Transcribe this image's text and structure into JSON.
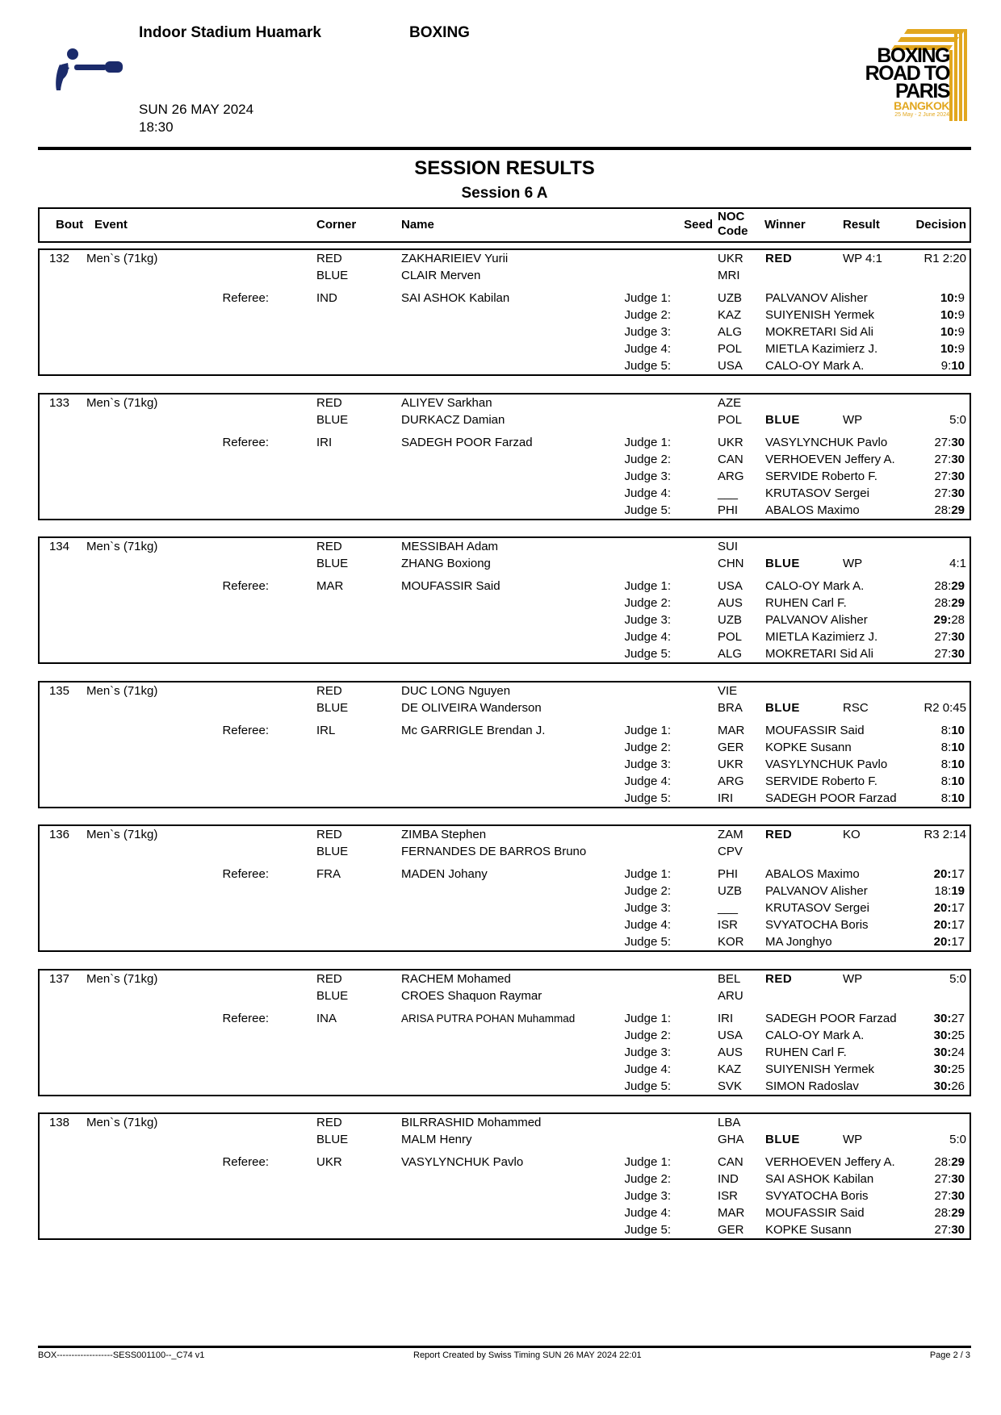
{
  "header": {
    "venue": "Indoor Stadium Huamark",
    "sport": "BOXING",
    "date": "SUN 26 MAY 2024",
    "time": "18:30",
    "logo": {
      "line1": "BOXING",
      "line2": "ROAD TO",
      "line3": "PARIS",
      "city": "BANGKOK",
      "dates": "25 May - 2 June 2024"
    },
    "title": "SESSION RESULTS",
    "subtitle": "Session 6 A"
  },
  "colors": {
    "pictogram": "#1b2b6b",
    "logo_gold": "#e2a71f"
  },
  "columns": {
    "bout": "Bout",
    "event": "Event",
    "corner": "Corner",
    "name": "Name",
    "seed": "Seed",
    "noc1": "NOC",
    "noc2": "Code",
    "winner": "Winner",
    "result": "Result",
    "decision": "Decision"
  },
  "labels": {
    "referee": "Referee:",
    "red": "RED",
    "blue": "BLUE"
  },
  "bouts": [
    {
      "bout": "132",
      "event": "Men`s (71kg)",
      "red": {
        "name": "ZAKHARIEIEV Yurii",
        "noc": "UKR"
      },
      "blue": {
        "name": "CLAIR Merven",
        "noc": "MRI"
      },
      "winner": "RED",
      "result": "WP 4:1",
      "decision": "R1 2:20",
      "referee": {
        "noc": "IND",
        "name": "SAI ASHOK Kabilan"
      },
      "judges": [
        {
          "label": "Judge 1:",
          "noc": "UZB",
          "name": "PALVANOV Alisher",
          "red": "10",
          "blue": "9",
          "bold": "red"
        },
        {
          "label": "Judge 2:",
          "noc": "KAZ",
          "name": "SUIYENISH Yermek",
          "red": "10",
          "blue": "9",
          "bold": "red"
        },
        {
          "label": "Judge 3:",
          "noc": "ALG",
          "name": "MOKRETARI Sid Ali",
          "red": "10",
          "blue": "9",
          "bold": "red"
        },
        {
          "label": "Judge 4:",
          "noc": "POL",
          "name": "MIETLA Kazimierz J.",
          "red": "10",
          "blue": "9",
          "bold": "red"
        },
        {
          "label": "Judge 5:",
          "noc": "USA",
          "name": "CALO-OY Mark A.",
          "red": "9",
          "blue": "10",
          "bold": "blue"
        }
      ]
    },
    {
      "bout": "133",
      "event": "Men`s (71kg)",
      "red": {
        "name": "ALIYEV Sarkhan",
        "noc": "AZE"
      },
      "blue": {
        "name": "DURKACZ Damian",
        "noc": "POL"
      },
      "winner": "BLUE",
      "result": "WP",
      "decision": "5:0",
      "referee": {
        "noc": "IRI",
        "name": "SADEGH POOR Farzad"
      },
      "judges": [
        {
          "label": "Judge 1:",
          "noc": "UKR",
          "name": "VASYLYNCHUK Pavlo",
          "red": "27",
          "blue": "30",
          "bold": "blue"
        },
        {
          "label": "Judge 2:",
          "noc": "CAN",
          "name": "VERHOEVEN Jeffery A.",
          "red": "27",
          "blue": "30",
          "bold": "blue"
        },
        {
          "label": "Judge 3:",
          "noc": "ARG",
          "name": "SERVIDE Roberto F.",
          "red": "27",
          "blue": "30",
          "bold": "blue"
        },
        {
          "label": "Judge 4:",
          "noc": "___",
          "name": "KRUTASOV Sergei",
          "red": "27",
          "blue": "30",
          "bold": "blue"
        },
        {
          "label": "Judge 5:",
          "noc": "PHI",
          "name": "ABALOS Maximo",
          "red": "28",
          "blue": "29",
          "bold": "blue"
        }
      ]
    },
    {
      "bout": "134",
      "event": "Men`s (71kg)",
      "red": {
        "name": "MESSIBAH Adam",
        "noc": "SUI"
      },
      "blue": {
        "name": "ZHANG Boxiong",
        "noc": "CHN"
      },
      "winner": "BLUE",
      "result": "WP",
      "decision": "4:1",
      "referee": {
        "noc": "MAR",
        "name": "MOUFASSIR Said"
      },
      "judges": [
        {
          "label": "Judge 1:",
          "noc": "USA",
          "name": "CALO-OY Mark A.",
          "red": "28",
          "blue": "29",
          "bold": "blue"
        },
        {
          "label": "Judge 2:",
          "noc": "AUS",
          "name": "RUHEN Carl F.",
          "red": "28",
          "blue": "29",
          "bold": "blue"
        },
        {
          "label": "Judge 3:",
          "noc": "UZB",
          "name": "PALVANOV Alisher",
          "red": "29",
          "blue": "28",
          "bold": "red"
        },
        {
          "label": "Judge 4:",
          "noc": "POL",
          "name": "MIETLA Kazimierz J.",
          "red": "27",
          "blue": "30",
          "bold": "blue"
        },
        {
          "label": "Judge 5:",
          "noc": "ALG",
          "name": "MOKRETARI Sid Ali",
          "red": "27",
          "blue": "30",
          "bold": "blue"
        }
      ]
    },
    {
      "bout": "135",
      "event": "Men`s (71kg)",
      "red": {
        "name": "DUC LONG Nguyen",
        "noc": "VIE"
      },
      "blue": {
        "name": "DE OLIVEIRA Wanderson",
        "noc": "BRA"
      },
      "winner": "BLUE",
      "result": "RSC",
      "decision": "R2 0:45",
      "referee": {
        "noc": "IRL",
        "name": "Mc GARRIGLE Brendan J."
      },
      "judges": [
        {
          "label": "Judge 1:",
          "noc": "MAR",
          "name": "MOUFASSIR Said",
          "red": "8",
          "blue": "10",
          "bold": "blue"
        },
        {
          "label": "Judge 2:",
          "noc": "GER",
          "name": "KOPKE Susann",
          "red": "8",
          "blue": "10",
          "bold": "blue"
        },
        {
          "label": "Judge 3:",
          "noc": "UKR",
          "name": "VASYLYNCHUK Pavlo",
          "red": "8",
          "blue": "10",
          "bold": "blue"
        },
        {
          "label": "Judge 4:",
          "noc": "ARG",
          "name": "SERVIDE Roberto F.",
          "red": "8",
          "blue": "10",
          "bold": "blue"
        },
        {
          "label": "Judge 5:",
          "noc": "IRI",
          "name": "SADEGH POOR Farzad",
          "red": "8",
          "blue": "10",
          "bold": "blue"
        }
      ]
    },
    {
      "bout": "136",
      "event": "Men`s (71kg)",
      "red": {
        "name": "ZIMBA Stephen",
        "noc": "ZAM"
      },
      "blue": {
        "name": "FERNANDES DE BARROS Bruno",
        "noc": "CPV"
      },
      "winner": "RED",
      "result": "KO",
      "decision": "R3 2:14",
      "referee": {
        "noc": "FRA",
        "name": "MADEN Johany"
      },
      "judges": [
        {
          "label": "Judge 1:",
          "noc": "PHI",
          "name": "ABALOS Maximo",
          "red": "20",
          "blue": "17",
          "bold": "red"
        },
        {
          "label": "Judge 2:",
          "noc": "UZB",
          "name": "PALVANOV Alisher",
          "red": "18",
          "blue": "19",
          "bold": "blue"
        },
        {
          "label": "Judge 3:",
          "noc": "___",
          "name": "KRUTASOV Sergei",
          "red": "20",
          "blue": "17",
          "bold": "red"
        },
        {
          "label": "Judge 4:",
          "noc": "ISR",
          "name": "SVYATOCHA Boris",
          "red": "20",
          "blue": "17",
          "bold": "red"
        },
        {
          "label": "Judge 5:",
          "noc": "KOR",
          "name": "MA Jonghyo",
          "red": "20",
          "blue": "17",
          "bold": "red"
        }
      ]
    },
    {
      "bout": "137",
      "event": "Men`s (71kg)",
      "red": {
        "name": "RACHEM Mohamed",
        "noc": "BEL"
      },
      "blue": {
        "name": "CROES Shaquon Raymar",
        "noc": "ARU"
      },
      "winner": "RED",
      "result": "WP",
      "decision": "5:0",
      "referee": {
        "noc": "INA",
        "name": "ARISA PUTRA POHAN Muhammad"
      },
      "judges": [
        {
          "label": "Judge 1:",
          "noc": "IRI",
          "name": "SADEGH POOR Farzad",
          "red": "30",
          "blue": "27",
          "bold": "red"
        },
        {
          "label": "Judge 2:",
          "noc": "USA",
          "name": "CALO-OY Mark A.",
          "red": "30",
          "blue": "25",
          "bold": "red"
        },
        {
          "label": "Judge 3:",
          "noc": "AUS",
          "name": "RUHEN Carl F.",
          "red": "30",
          "blue": "24",
          "bold": "red"
        },
        {
          "label": "Judge 4:",
          "noc": "KAZ",
          "name": "SUIYENISH Yermek",
          "red": "30",
          "blue": "25",
          "bold": "red"
        },
        {
          "label": "Judge 5:",
          "noc": "SVK",
          "name": "SIMON Radoslav",
          "red": "30",
          "blue": "26",
          "bold": "red"
        }
      ]
    },
    {
      "bout": "138",
      "event": "Men`s (71kg)",
      "red": {
        "name": "BILRRASHID Mohammed",
        "noc": "LBA"
      },
      "blue": {
        "name": "MALM Henry",
        "noc": "GHA"
      },
      "winner": "BLUE",
      "result": "WP",
      "decision": "5:0",
      "referee": {
        "noc": "UKR",
        "name": "VASYLYNCHUK Pavlo"
      },
      "judges": [
        {
          "label": "Judge 1:",
          "noc": "CAN",
          "name": "VERHOEVEN Jeffery A.",
          "red": "28",
          "blue": "29",
          "bold": "blue"
        },
        {
          "label": "Judge 2:",
          "noc": "IND",
          "name": "SAI ASHOK Kabilan",
          "red": "27",
          "blue": "30",
          "bold": "blue"
        },
        {
          "label": "Judge 3:",
          "noc": "ISR",
          "name": "SVYATOCHA Boris",
          "red": "27",
          "blue": "30",
          "bold": "blue"
        },
        {
          "label": "Judge 4:",
          "noc": "MAR",
          "name": "MOUFASSIR Said",
          "red": "28",
          "blue": "29",
          "bold": "blue"
        },
        {
          "label": "Judge 5:",
          "noc": "GER",
          "name": "KOPKE Susann",
          "red": "27",
          "blue": "30",
          "bold": "blue"
        }
      ]
    }
  ],
  "footer": {
    "code": "BOX-------------------SESS001100--_C74 v1",
    "created": "Report Created by Swiss Timing  SUN 26 MAY 2024 22:01",
    "page": "Page 2 / 3"
  }
}
